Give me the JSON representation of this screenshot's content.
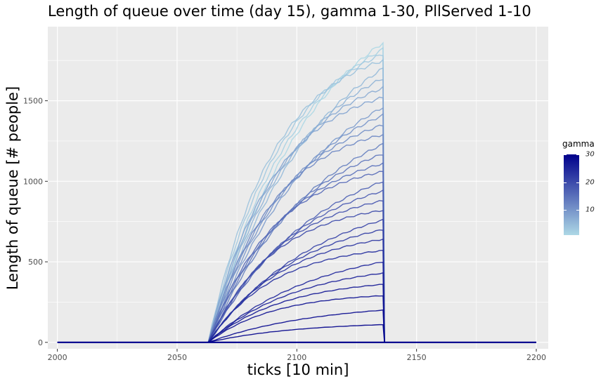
{
  "title": "Length of queue over time (day 15), gamma 1-30, PllServed 1-10",
  "chart_data": {
    "type": "line",
    "title": "Length of queue over time (day 15), gamma 1-30, PllServed 1-10",
    "xlabel": "ticks [10 min]",
    "ylabel": "Length of queue [# people]",
    "xlim": [
      1996,
      2205
    ],
    "ylim": [
      -40,
      1960
    ],
    "x_ticks": [
      2000,
      2050,
      2100,
      2150,
      2200
    ],
    "y_ticks": [
      0,
      500,
      1000,
      1500
    ],
    "grid": true,
    "series_shape": {
      "start": 2000,
      "rise_start": 2063,
      "rise_end": 2136,
      "end": 2200,
      "note_values": "each series is 0 until rise_start, rises concavely to its final value at rise_end, then drops to 0 and stays at 0"
    },
    "series": [
      {
        "gamma": 1,
        "final": 1860
      },
      {
        "gamma": 2,
        "final": 1820
      },
      {
        "gamma": 3,
        "final": 1790
      },
      {
        "gamma": 4,
        "final": 1750
      },
      {
        "gamma": 5,
        "final": 1700
      },
      {
        "gamma": 6,
        "final": 1640
      },
      {
        "gamma": 7,
        "final": 1580
      },
      {
        "gamma": 8,
        "final": 1520
      },
      {
        "gamma": 9,
        "final": 1460
      },
      {
        "gamma": 10,
        "final": 1410
      },
      {
        "gamma": 11,
        "final": 1350
      },
      {
        "gamma": 12,
        "final": 1290
      },
      {
        "gamma": 13,
        "final": 1230
      },
      {
        "gamma": 14,
        "final": 1170
      },
      {
        "gamma": 15,
        "final": 1110
      },
      {
        "gamma": 16,
        "final": 1060
      },
      {
        "gamma": 17,
        "final": 1000
      },
      {
        "gamma": 18,
        "final": 940
      },
      {
        "gamma": 19,
        "final": 880
      },
      {
        "gamma": 20,
        "final": 820
      },
      {
        "gamma": 21,
        "final": 760
      },
      {
        "gamma": 22,
        "final": 700
      },
      {
        "gamma": 23,
        "final": 640
      },
      {
        "gamma": 24,
        "final": 570
      },
      {
        "gamma": 25,
        "final": 500
      },
      {
        "gamma": 26,
        "final": 430
      },
      {
        "gamma": 27,
        "final": 360
      },
      {
        "gamma": 28,
        "final": 290
      },
      {
        "gamma": 29,
        "final": 200
      },
      {
        "gamma": 30,
        "final": 110
      }
    ],
    "legend": {
      "title": "gamma",
      "position": "right",
      "range": [
        1,
        30
      ],
      "ticks": [
        10,
        20,
        30
      ],
      "low_color": "#add8e6",
      "high_color": "#00008b"
    },
    "panel_background": "#ebebeb",
    "grid_color": "#ffffff"
  }
}
